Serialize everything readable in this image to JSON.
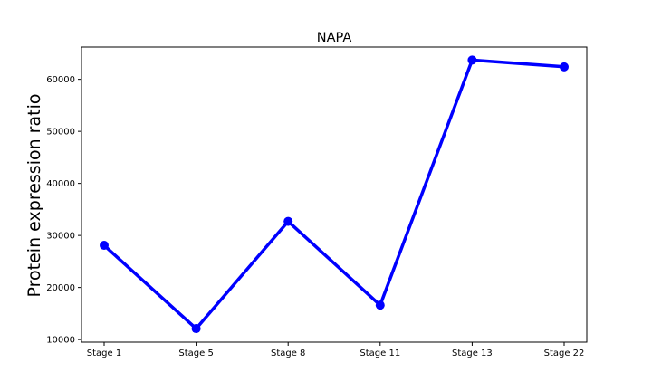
{
  "chart_data": {
    "type": "line",
    "title": "NAPA",
    "xlabel": "",
    "ylabel": "Protein expression ratio",
    "categories": [
      "Stage 1",
      "Stage 5",
      "Stage 8",
      "Stage 11",
      "Stage 13",
      "Stage 22"
    ],
    "series": [
      {
        "values": [
          28100,
          12100,
          32700,
          16600,
          63700,
          62400
        ]
      }
    ],
    "yticks": [
      10000,
      20000,
      30000,
      40000,
      50000,
      60000
    ],
    "ytick_labels": [
      "10000",
      "20000",
      "30000",
      "40000",
      "50000",
      "60000"
    ],
    "ylim": [
      9500,
      66200
    ],
    "grid": false,
    "colors": {
      "line": "#0000ff",
      "axes": "#000000"
    }
  }
}
